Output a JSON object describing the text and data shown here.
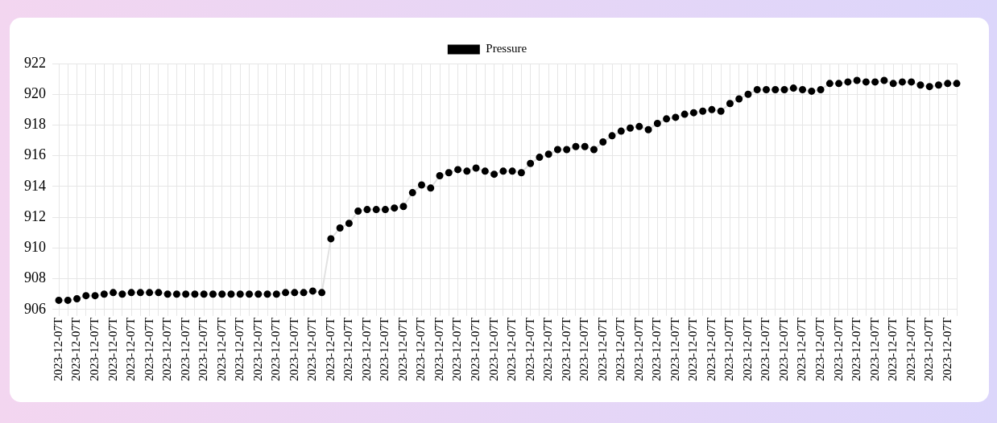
{
  "chart_data": {
    "type": "line",
    "categories": [
      "2023-12-07T",
      null,
      "2023-12-07T",
      null,
      "2023-12-07T",
      null,
      "2023-12-07T",
      null,
      "2023-12-07T",
      null,
      "2023-12-07T",
      null,
      "2023-12-07T",
      null,
      "2023-12-07T",
      null,
      "2023-12-07T",
      null,
      "2023-12-07T",
      null,
      "2023-12-07T",
      null,
      "2023-12-07T",
      null,
      "2023-12-07T",
      null,
      "2023-12-07T",
      null,
      "2023-12-07T",
      null,
      "2023-12-07T",
      null,
      "2023-12-07T",
      null,
      "2023-12-07T",
      null,
      "2023-12-07T",
      null,
      "2023-12-07T",
      null,
      "2023-12-07T",
      null,
      "2023-12-07T",
      null,
      "2023-12-07T",
      null,
      "2023-12-07T",
      null,
      "2023-12-07T",
      null,
      "2023-12-07T",
      null,
      "2023-12-07T",
      null,
      "2023-12-07T",
      null,
      "2023-12-07T",
      null,
      "2023-12-07T",
      null,
      "2023-12-07T",
      null,
      "2023-12-07T",
      null,
      "2023-12-07T",
      null,
      "2023-12-07T",
      null,
      "2023-12-07T",
      null,
      "2023-12-07T",
      null,
      "2023-12-07T",
      null,
      "2023-12-07T",
      null,
      "2023-12-07T",
      null,
      "2023-12-07T",
      null,
      "2023-12-07T",
      null,
      "2023-12-07T",
      null,
      "2023-12-07T",
      null,
      "2023-12-07T",
      null,
      "2023-12-07T",
      null,
      "2023-12-07T",
      null,
      "2023-12-07T",
      null,
      "2023-12-07T",
      null,
      "2023-12-07T",
      null,
      "2023-12-07T",
      null
    ],
    "series": [
      {
        "name": "Pressure",
        "color": "#000000",
        "values": [
          906.6,
          906.6,
          906.7,
          906.9,
          906.9,
          907.0,
          907.1,
          907.0,
          907.1,
          907.1,
          907.1,
          907.1,
          907.0,
          907.0,
          907.0,
          907.0,
          907.0,
          907.0,
          907.0,
          907.0,
          907.0,
          907.0,
          907.0,
          907.0,
          907.0,
          907.1,
          907.1,
          907.1,
          907.2,
          907.1,
          910.6,
          911.3,
          911.6,
          912.4,
          912.5,
          912.5,
          912.5,
          912.6,
          912.7,
          913.6,
          914.1,
          913.9,
          914.7,
          914.9,
          915.1,
          915.0,
          915.2,
          915.0,
          914.8,
          915.0,
          915.0,
          914.9,
          915.5,
          915.9,
          916.1,
          916.4,
          916.4,
          916.6,
          916.6,
          916.4,
          916.9,
          917.3,
          917.6,
          917.8,
          917.9,
          917.7,
          918.1,
          918.4,
          918.5,
          918.7,
          918.8,
          918.9,
          919.0,
          918.9,
          919.4,
          919.7,
          920.0,
          920.3,
          920.3,
          920.3,
          920.3,
          920.4,
          920.3,
          920.2,
          920.3,
          920.7,
          920.7,
          920.8,
          920.9,
          920.8,
          920.8,
          920.9,
          920.7,
          920.8,
          920.8,
          920.6,
          920.5,
          920.6,
          920.7,
          920.7
        ]
      }
    ],
    "ylim": [
      906,
      922
    ],
    "yticks": [
      906,
      908,
      910,
      912,
      914,
      916,
      918,
      920,
      922
    ],
    "grid": true,
    "legend": "top",
    "marker": "circle",
    "line_style": "solid"
  }
}
